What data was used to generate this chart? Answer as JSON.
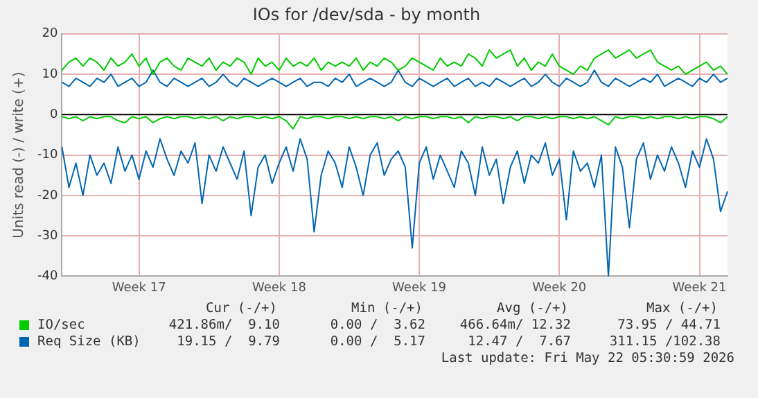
{
  "chart_data": {
    "type": "line",
    "title": "IOs for /dev/sda - by month",
    "ylabel": "Units read (-) / write (+)",
    "categories": [
      null,
      null,
      null,
      null,
      null,
      null,
      null,
      null,
      null,
      null,
      null,
      "Week 17",
      null,
      null,
      null,
      null,
      null,
      null,
      null,
      null,
      null,
      null,
      null,
      null,
      null,
      null,
      null,
      null,
      null,
      null,
      null,
      "Week 18",
      null,
      null,
      null,
      null,
      null,
      null,
      null,
      null,
      null,
      null,
      null,
      null,
      null,
      null,
      null,
      null,
      null,
      null,
      null,
      "Week 19",
      null,
      null,
      null,
      null,
      null,
      null,
      null,
      null,
      null,
      null,
      null,
      null,
      null,
      null,
      null,
      null,
      null,
      null,
      null,
      "Week 20",
      null,
      null,
      null,
      null,
      null,
      null,
      null,
      null,
      null,
      null,
      null,
      null,
      null,
      null,
      null,
      null,
      null,
      null,
      null,
      "Week 21",
      null,
      null,
      null,
      null
    ],
    "series": [
      {
        "name": "IO/sec",
        "color": "#00cc00",
        "values": [
          11,
          13,
          14,
          12,
          14,
          13,
          11,
          14,
          12,
          13,
          15,
          12,
          14,
          10,
          13,
          14,
          12,
          11,
          14,
          13,
          12,
          14,
          11,
          13,
          12,
          14,
          13,
          10,
          14,
          12,
          13,
          11,
          14,
          12,
          13,
          12,
          14,
          11,
          13,
          12,
          13,
          12,
          14,
          11,
          13,
          12,
          14,
          13,
          11,
          12,
          14,
          13,
          12,
          11,
          14,
          12,
          13,
          12,
          15,
          14,
          12,
          16,
          14,
          15,
          16,
          12,
          14,
          11,
          13,
          12,
          15,
          12,
          11,
          10,
          12,
          11,
          14,
          15,
          16,
          14,
          15,
          16,
          14,
          15,
          16,
          13,
          12,
          11,
          12,
          10,
          11,
          12,
          13,
          11,
          12,
          10
        ]
      },
      {
        "color": "#00cc00",
        "values": [
          -0.5,
          -1,
          -0.5,
          -1.5,
          -0.5,
          -1,
          -0.5,
          -0.5,
          -1.5,
          -2,
          -0.5,
          -1,
          -0.5,
          -2,
          -1,
          -0.5,
          -1,
          -0.5,
          -0.5,
          -1,
          -0.5,
          -1,
          -0.5,
          -1.5,
          -0.5,
          -1,
          -0.5,
          -0.5,
          -1,
          -0.5,
          -1,
          -0.5,
          -1.5,
          -3.5,
          -0.5,
          -1,
          -0.5,
          -0.5,
          -1,
          -0.5,
          -0.5,
          -1,
          -0.5,
          -1,
          -0.5,
          -0.5,
          -1,
          -0.5,
          -1.5,
          -0.5,
          -1,
          -0.5,
          -0.5,
          -1,
          -0.5,
          -0.5,
          -1,
          -0.5,
          -2,
          -0.5,
          -1,
          -0.5,
          -0.5,
          -1,
          -0.5,
          -1.5,
          -0.5,
          -0.5,
          -1,
          -0.5,
          -1,
          -0.5,
          -0.5,
          -1,
          -0.5,
          -1,
          -0.5,
          -1.5,
          -2.5,
          -0.5,
          -1,
          -0.5,
          -0.5,
          -1,
          -0.5,
          -1,
          -0.5,
          -0.5,
          -1,
          -0.5,
          -1,
          -0.5,
          -0.5,
          -1,
          -2,
          -0.5
        ]
      },
      {
        "name": "Req Size (KB)",
        "color": "#0066b3",
        "values": [
          8,
          7,
          9,
          8,
          7,
          9,
          8,
          10,
          7,
          8,
          9,
          7,
          8,
          11,
          8,
          7,
          9,
          8,
          7,
          8,
          9,
          7,
          8,
          10,
          8,
          7,
          9,
          8,
          7,
          8,
          9,
          8,
          7,
          8,
          9,
          7,
          8,
          8,
          7,
          9,
          8,
          10,
          7,
          8,
          9,
          8,
          7,
          8,
          11,
          8,
          7,
          9,
          8,
          7,
          8,
          9,
          7,
          8,
          9,
          7,
          8,
          7,
          9,
          8,
          7,
          8,
          9,
          7,
          8,
          10,
          8,
          7,
          9,
          8,
          7,
          8,
          11,
          8,
          7,
          9,
          8,
          7,
          8,
          9,
          8,
          10,
          7,
          8,
          9,
          8,
          7,
          9,
          8,
          10,
          8,
          9
        ]
      },
      {
        "color": "#0066b3",
        "values": [
          -8,
          -18,
          -12,
          -20,
          -10,
          -15,
          -12,
          -17,
          -8,
          -14,
          -10,
          -16,
          -9,
          -13,
          -6,
          -11,
          -15,
          -9,
          -12,
          -7,
          -22,
          -10,
          -14,
          -8,
          -12,
          -16,
          -9,
          -25,
          -13,
          -10,
          -17,
          -12,
          -8,
          -14,
          -6,
          -11,
          -29,
          -15,
          -9,
          -12,
          -18,
          -8,
          -13,
          -20,
          -10,
          -7,
          -15,
          -11,
          -9,
          -13,
          -33,
          -12,
          -8,
          -16,
          -10,
          -14,
          -18,
          -9,
          -12,
          -20,
          -8,
          -15,
          -11,
          -22,
          -13,
          -9,
          -17,
          -10,
          -12,
          -7,
          -15,
          -11,
          -26,
          -9,
          -14,
          -12,
          -18,
          -10,
          -40,
          -8,
          -13,
          -28,
          -11,
          -7,
          -16,
          -10,
          -14,
          -8,
          -12,
          -18,
          -9,
          -13,
          -6,
          -11,
          -24,
          -19
        ]
      }
    ],
    "ylim": [
      -40,
      20
    ],
    "yticks": [
      -40,
      -30,
      -20,
      -10,
      0,
      10,
      20
    ],
    "grid": true,
    "legend": "bottom",
    "marker": "none",
    "line_style": "solid",
    "ref_lines": [
      {
        "axis": "y",
        "value": 0,
        "color": "#000000"
      }
    ],
    "annotations": [
      "Cur (-/+)",
      "Min (-/+)",
      "Avg (-/+)",
      "Max (-/+)",
      "421.86m/  9.10",
      "0.00 /  3.62",
      "466.64m/ 12.32",
      "73.95 / 44.71",
      "19.15 /  9.79",
      "0.00 /  5.17",
      "12.47 /  7.67",
      "311.15 /102.38",
      "Last update: Fri May 22 05:30:59 2026"
    ]
  }
}
